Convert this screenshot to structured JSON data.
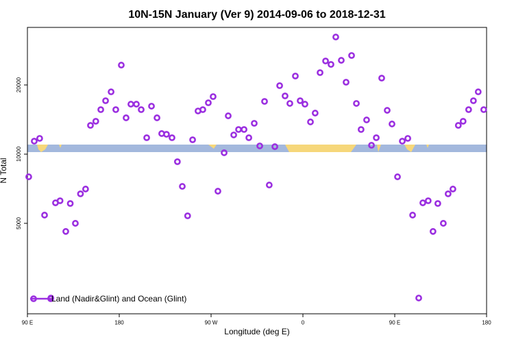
{
  "chart_data": {
    "type": "scatter",
    "title": "10N-15N January (Ver 9)   2014-09-06 to 2018-12-31",
    "x_label": "Longitude (deg E)",
    "y_label": "N Total",
    "series": [
      {
        "name": "Land (Nadir&Glint) and Ocean (Glint)",
        "color": "#9b2fe0",
        "x": [
          91.3,
          96.7,
          102,
          106.8,
          113,
          117.5,
          122,
          127.6,
          132,
          137,
          142,
          147,
          151.8,
          157,
          161.9,
          166.6,
          172,
          176.6,
          182,
          186.7,
          191.4,
          196.8,
          201.5,
          206.9,
          211.6,
          217,
          221.6,
          226.3,
          231.7,
          237,
          241.8,
          247,
          251.9,
          257.2,
          261.9,
          267.3,
          272,
          276.7,
          282.8,
          286.8,
          292.2,
          296.9,
          302.3,
          307,
          312.3,
          317.7,
          322.4,
          327,
          332.5,
          337.2,
          342.5,
          347.2,
          352.6,
          357.3,
          362,
          367.4,
          372,
          376.8,
          382.2,
          387.5,
          392.2,
          397.6,
          402.3,
          407.7,
          412.4,
          417,
          422.4,
          427.2,
          431.9,
          437.2,
          442.6,
          447.3,
          452.7,
          457.4,
          462.8,
          467.5,
          473.5,
          477.5,
          482.8,
          487.5,
          492.2,
          497.6,
          502.3,
          507,
          512.3,
          517,
          522.4,
          527.1,
          531.8,
          537.2
        ],
        "values": [
          7970,
          11390,
          11710,
          5430,
          2366,
          6140,
          6270,
          4610,
          6100,
          5000,
          6720,
          7050,
          13340,
          13900,
          15620,
          17080,
          18670,
          15620,
          24400,
          14390,
          16500,
          16500,
          15620,
          11790,
          16170,
          14390,
          12290,
          12200,
          11790,
          9270,
          7240,
          5390,
          11550,
          15410,
          15620,
          16730,
          17800,
          6900,
          10140,
          14680,
          12120,
          12800,
          12800,
          11790,
          13620,
          10860,
          16960,
          7340,
          10780,
          19860,
          17920,
          16620,
          21870,
          17080,
          16500,
          13810,
          15090,
          22630,
          25430,
          24570,
          32330,
          25600,
          20560,
          26870,
          16620,
          12800,
          14090,
          10930,
          11790,
          21420,
          15510,
          13530,
          7970,
          11390,
          11710,
          5430,
          2366,
          6140,
          6270,
          4610,
          6100,
          5000,
          6720,
          7050,
          13340,
          13900,
          15620,
          17080,
          18670,
          15620
        ]
      }
    ],
    "xlim": [
      90,
      540
    ],
    "xticks": [
      {
        "value": 90,
        "label": "90 E"
      },
      180,
      {
        "value": 270,
        "label": "90 W"
      },
      {
        "value": 360,
        "label": "0"
      },
      {
        "value": 450,
        "label": "90 E"
      },
      {
        "value": 540,
        "label": "180"
      }
    ],
    "ylim": [
      2020,
      35600
    ],
    "yticks": [
      5000,
      10000,
      20000
    ],
    "log_y": true,
    "legend": "bottom-left"
  }
}
